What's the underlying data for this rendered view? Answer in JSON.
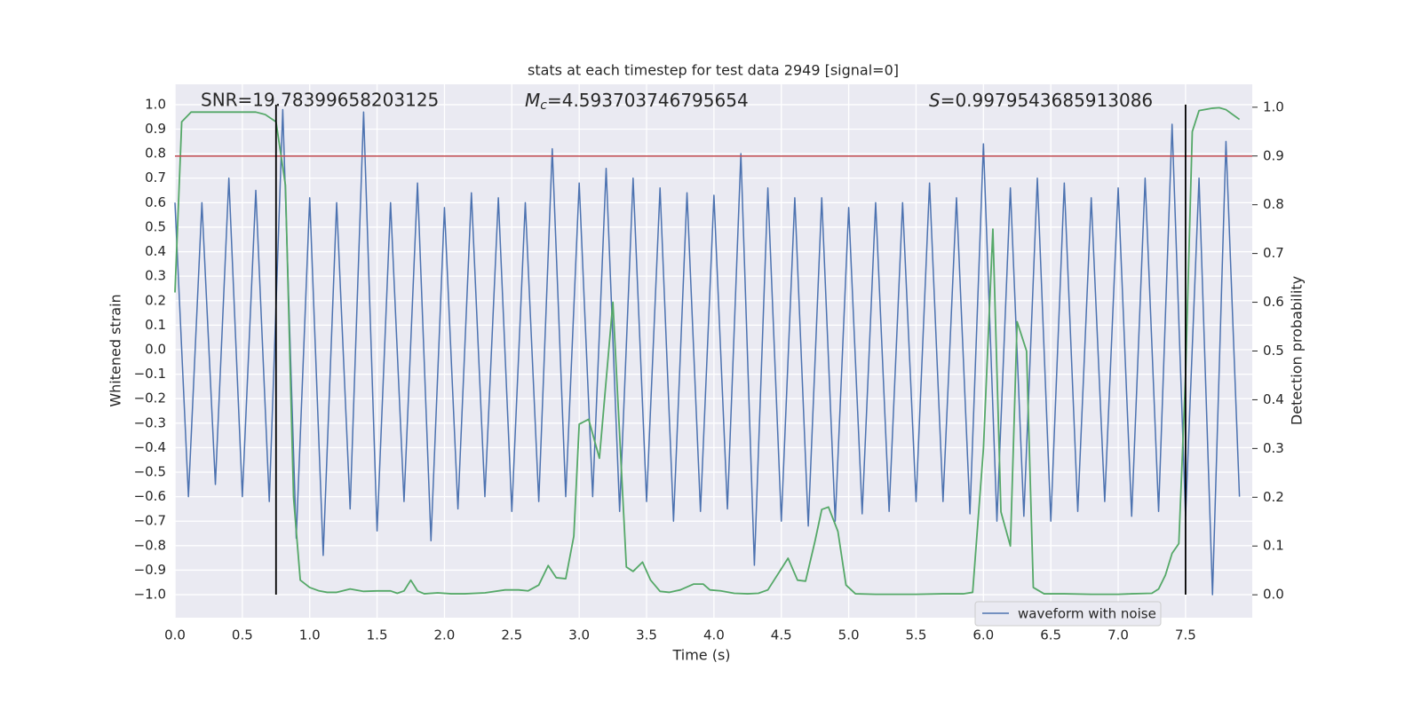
{
  "chart_data": {
    "type": "line",
    "title": "stats at each timestep for test data 2949 [signal=0]",
    "annotations": [
      {
        "text": "SNR=19.78399658203125"
      },
      {
        "symbol": "M",
        "subscript": "c",
        "text": "=4.593703746795654"
      },
      {
        "symbol": "S",
        "text": "=0.9979543685913086"
      }
    ],
    "xlabel": "Time (s)",
    "ylabel": "Whitened strain",
    "y2label": "Detection probability",
    "xlim": [
      0,
      7.995
    ],
    "ylim": [
      -1.094,
      1.083
    ],
    "y2lim": [
      -0.047,
      1.047
    ],
    "xticks": [
      {
        "value": 0,
        "label": "0.0"
      },
      0.5,
      {
        "value": 1,
        "label": "1.0"
      },
      1.5,
      {
        "value": 2,
        "label": "2.0"
      },
      2.5,
      {
        "value": 3,
        "label": "3.0"
      },
      3.5,
      {
        "value": 4,
        "label": "4.0"
      },
      4.5,
      {
        "value": 5,
        "label": "5.0"
      },
      5.5,
      {
        "value": 6,
        "label": "6.0"
      },
      6.5,
      {
        "value": 7,
        "label": "7.0"
      },
      7.5
    ],
    "yticks": [
      {
        "value": -1,
        "label": "−1.0"
      },
      {
        "value": -0.9,
        "label": "−0.9"
      },
      {
        "value": -0.8,
        "label": "−0.8"
      },
      {
        "value": -0.7,
        "label": "−0.7"
      },
      {
        "value": -0.6,
        "label": "−0.6"
      },
      {
        "value": -0.5,
        "label": "−0.5"
      },
      {
        "value": -0.4,
        "label": "−0.4"
      },
      {
        "value": -0.3,
        "label": "−0.3"
      },
      {
        "value": -0.2,
        "label": "−0.2"
      },
      {
        "value": -0.1,
        "label": "−0.1"
      },
      {
        "value": 0,
        "label": "0.0"
      },
      0.1,
      0.2,
      0.3,
      0.4,
      0.5,
      0.6,
      0.7,
      0.8,
      0.9,
      {
        "value": 1,
        "label": "1.0"
      }
    ],
    "y2ticks": [
      {
        "value": 0,
        "label": "0.0"
      },
      0.1,
      0.2,
      0.3,
      0.4,
      0.5,
      0.6,
      0.7,
      0.8,
      0.9,
      {
        "value": 1,
        "label": "1.0"
      }
    ],
    "grid": true,
    "legend": "lower right",
    "threshold": 0.79,
    "threshold_color": "#c44e52",
    "vlines": [
      0.75,
      7.5
    ],
    "vline_color": "#000000",
    "series": [
      {
        "name": "waveform with noise",
        "color": "#4c72b0",
        "x": [
          0.0,
          0.1,
          0.2,
          0.3,
          0.4,
          0.5,
          0.6,
          0.7,
          0.8,
          0.9,
          1.0,
          1.1,
          1.2,
          1.3,
          1.4,
          1.5,
          1.6,
          1.7,
          1.8,
          1.9,
          2.0,
          2.1,
          2.2,
          2.3,
          2.4,
          2.5,
          2.6,
          2.7,
          2.8,
          2.9,
          3.0,
          3.1,
          3.2,
          3.3,
          3.4,
          3.5,
          3.6,
          3.7,
          3.8,
          3.9,
          4.0,
          4.1,
          4.2,
          4.3,
          4.4,
          4.5,
          4.6,
          4.7,
          4.8,
          4.9,
          5.0,
          5.1,
          5.2,
          5.3,
          5.4,
          5.5,
          5.6,
          5.7,
          5.8,
          5.9,
          6.0,
          6.1,
          6.2,
          6.3,
          6.4,
          6.5,
          6.6,
          6.7,
          6.8,
          6.9,
          7.0,
          7.1,
          7.2,
          7.3,
          7.4,
          7.5,
          7.6,
          7.7,
          7.8,
          7.9
        ],
        "values": [
          0.6,
          -0.6,
          0.6,
          -0.55,
          0.7,
          -0.6,
          0.65,
          -0.62,
          0.98,
          -0.77,
          0.62,
          -0.84,
          0.6,
          -0.65,
          0.97,
          -0.74,
          0.6,
          -0.62,
          0.68,
          -0.78,
          0.58,
          -0.65,
          0.64,
          -0.6,
          0.62,
          -0.66,
          0.6,
          -0.62,
          0.82,
          -0.6,
          0.68,
          -0.6,
          0.74,
          -0.66,
          0.7,
          -0.62,
          0.66,
          -0.7,
          0.64,
          -0.66,
          0.63,
          -0.65,
          0.8,
          -0.88,
          0.66,
          -0.7,
          0.62,
          -0.72,
          0.62,
          -0.7,
          0.58,
          -0.67,
          0.6,
          -0.66,
          0.6,
          -0.62,
          0.68,
          -0.62,
          0.62,
          -0.67,
          0.84,
          -0.7,
          0.66,
          -0.68,
          0.7,
          -0.7,
          0.68,
          -0.66,
          0.62,
          -0.62,
          0.66,
          -0.68,
          0.7,
          -0.66,
          0.92,
          -0.68,
          0.7,
          -1.0,
          0.85,
          -0.6
        ]
      },
      {
        "color": "#55a868",
        "axis": "y2",
        "x": [
          0.0,
          0.05,
          0.12,
          0.2,
          0.6,
          0.67,
          0.75,
          0.82,
          0.88,
          0.93,
          1.0,
          1.07,
          1.13,
          1.2,
          1.3,
          1.4,
          1.5,
          1.6,
          1.65,
          1.7,
          1.75,
          1.8,
          1.85,
          1.95,
          2.05,
          2.15,
          2.3,
          2.45,
          2.55,
          2.62,
          2.7,
          2.77,
          2.83,
          2.9,
          2.96,
          3.0,
          3.07,
          3.15,
          3.25,
          3.35,
          3.4,
          3.47,
          3.53,
          3.6,
          3.67,
          3.75,
          3.85,
          3.92,
          3.97,
          4.05,
          4.15,
          4.25,
          4.33,
          4.4,
          4.55,
          4.62,
          4.68,
          4.75,
          4.8,
          4.85,
          4.92,
          4.98,
          5.05,
          5.2,
          5.35,
          5.5,
          5.7,
          5.85,
          5.92,
          6.0,
          6.07,
          6.13,
          6.2,
          6.25,
          6.32,
          6.37,
          6.45,
          6.6,
          6.8,
          7.0,
          7.1,
          7.25,
          7.3,
          7.35,
          7.4,
          7.45,
          7.5,
          7.55,
          7.6,
          7.7,
          7.75,
          7.8,
          7.9
        ],
        "values": [
          0.62,
          0.97,
          0.99,
          0.99,
          0.99,
          0.985,
          0.97,
          0.84,
          0.2,
          0.03,
          0.015,
          0.008,
          0.005,
          0.005,
          0.012,
          0.007,
          0.008,
          0.008,
          0.003,
          0.008,
          0.03,
          0.008,
          0.002,
          0.004,
          0.002,
          0.002,
          0.004,
          0.01,
          0.01,
          0.008,
          0.02,
          0.06,
          0.035,
          0.033,
          0.12,
          0.35,
          0.36,
          0.28,
          0.6,
          0.057,
          0.048,
          0.067,
          0.03,
          0.007,
          0.005,
          0.01,
          0.022,
          0.022,
          0.01,
          0.008,
          0.003,
          0.002,
          0.003,
          0.01,
          0.075,
          0.03,
          0.028,
          0.11,
          0.175,
          0.18,
          0.13,
          0.02,
          0.002,
          0.001,
          0.001,
          0.001,
          0.002,
          0.002,
          0.005,
          0.3,
          0.75,
          0.17,
          0.1,
          0.56,
          0.5,
          0.015,
          0.002,
          0.002,
          0.001,
          0.001,
          0.002,
          0.003,
          0.012,
          0.04,
          0.085,
          0.105,
          0.45,
          0.95,
          0.993,
          0.998,
          0.999,
          0.995,
          0.975
        ]
      }
    ]
  }
}
